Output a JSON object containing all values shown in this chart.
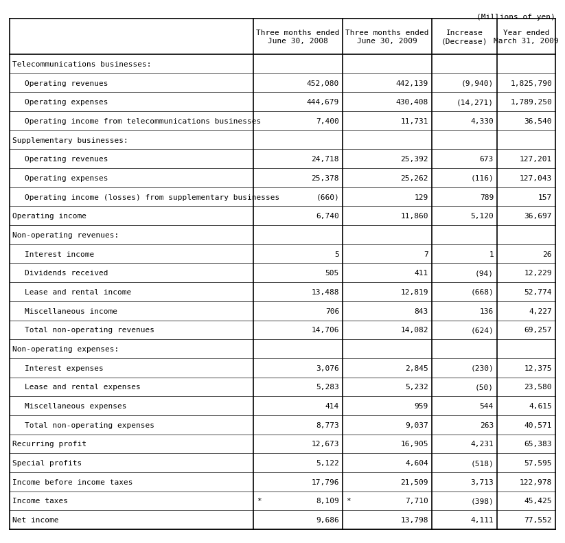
{
  "title_note": "(Millions of yen)",
  "col_headers": [
    "Three months ended\nJune 30, 2008",
    "Three months ended\nJune 30, 2009",
    "Increase\n(Decrease)",
    "Year ended\nMarch 31, 2009"
  ],
  "rows": [
    {
      "label": "Telecommunications businesses:",
      "indent": 0,
      "is_section": true,
      "values": [
        "",
        "",
        "",
        ""
      ],
      "star": [
        "",
        "",
        "",
        ""
      ]
    },
    {
      "label": "Operating revenues",
      "indent": 1,
      "is_section": false,
      "values": [
        "452,080",
        "442,139",
        "(9,940)",
        "1,825,790"
      ],
      "star": [
        "",
        "",
        "",
        ""
      ]
    },
    {
      "label": "Operating expenses",
      "indent": 1,
      "is_section": false,
      "values": [
        "444,679",
        "430,408",
        "(14,271)",
        "1,789,250"
      ],
      "star": [
        "",
        "",
        "",
        ""
      ]
    },
    {
      "label": "Operating income from telecommunications businesses",
      "indent": 1,
      "is_section": false,
      "values": [
        "7,400",
        "11,731",
        "4,330",
        "36,540"
      ],
      "star": [
        "",
        "",
        "",
        ""
      ]
    },
    {
      "label": "Supplementary businesses:",
      "indent": 0,
      "is_section": true,
      "values": [
        "",
        "",
        "",
        ""
      ],
      "star": [
        "",
        "",
        "",
        ""
      ]
    },
    {
      "label": "Operating revenues",
      "indent": 1,
      "is_section": false,
      "values": [
        "24,718",
        "25,392",
        "673",
        "127,201"
      ],
      "star": [
        "",
        "",
        "",
        ""
      ]
    },
    {
      "label": "Operating expenses",
      "indent": 1,
      "is_section": false,
      "values": [
        "25,378",
        "25,262",
        "(116)",
        "127,043"
      ],
      "star": [
        "",
        "",
        "",
        ""
      ]
    },
    {
      "label": "Operating income (losses) from supplementary businesses",
      "indent": 1,
      "is_section": false,
      "values": [
        "(660)",
        "129",
        "789",
        "157"
      ],
      "star": [
        "",
        "",
        "",
        ""
      ]
    },
    {
      "label": "Operating income",
      "indent": 0,
      "is_section": false,
      "values": [
        "6,740",
        "11,860",
        "5,120",
        "36,697"
      ],
      "star": [
        "",
        "",
        "",
        ""
      ]
    },
    {
      "label": "Non-operating revenues:",
      "indent": 0,
      "is_section": true,
      "values": [
        "",
        "",
        "",
        ""
      ],
      "star": [
        "",
        "",
        "",
        ""
      ]
    },
    {
      "label": "Interest income",
      "indent": 1,
      "is_section": false,
      "values": [
        "5",
        "7",
        "1",
        "26"
      ],
      "star": [
        "",
        "",
        "",
        ""
      ]
    },
    {
      "label": "Dividends received",
      "indent": 1,
      "is_section": false,
      "values": [
        "505",
        "411",
        "(94)",
        "12,229"
      ],
      "star": [
        "",
        "",
        "",
        ""
      ]
    },
    {
      "label": "Lease and rental income",
      "indent": 1,
      "is_section": false,
      "values": [
        "13,488",
        "12,819",
        "(668)",
        "52,774"
      ],
      "star": [
        "",
        "",
        "",
        ""
      ]
    },
    {
      "label": "Miscellaneous income",
      "indent": 1,
      "is_section": false,
      "values": [
        "706",
        "843",
        "136",
        "4,227"
      ],
      "star": [
        "",
        "",
        "",
        ""
      ]
    },
    {
      "label": "Total non-operating revenues",
      "indent": 1,
      "is_section": false,
      "values": [
        "14,706",
        "14,082",
        "(624)",
        "69,257"
      ],
      "star": [
        "",
        "",
        "",
        ""
      ]
    },
    {
      "label": "Non-operating expenses:",
      "indent": 0,
      "is_section": true,
      "values": [
        "",
        "",
        "",
        ""
      ],
      "star": [
        "",
        "",
        "",
        ""
      ]
    },
    {
      "label": "Interest expenses",
      "indent": 1,
      "is_section": false,
      "values": [
        "3,076",
        "2,845",
        "(230)",
        "12,375"
      ],
      "star": [
        "",
        "",
        "",
        ""
      ]
    },
    {
      "label": "Lease and rental expenses",
      "indent": 1,
      "is_section": false,
      "values": [
        "5,283",
        "5,232",
        "(50)",
        "23,580"
      ],
      "star": [
        "",
        "",
        "",
        ""
      ]
    },
    {
      "label": "Miscellaneous expenses",
      "indent": 1,
      "is_section": false,
      "values": [
        "414",
        "959",
        "544",
        "4,615"
      ],
      "star": [
        "",
        "",
        "",
        ""
      ]
    },
    {
      "label": "Total non-operating expenses",
      "indent": 1,
      "is_section": false,
      "values": [
        "8,773",
        "9,037",
        "263",
        "40,571"
      ],
      "star": [
        "",
        "",
        "",
        ""
      ]
    },
    {
      "label": "Recurring profit",
      "indent": 0,
      "is_section": false,
      "values": [
        "12,673",
        "16,905",
        "4,231",
        "65,383"
      ],
      "star": [
        "",
        "",
        "",
        ""
      ]
    },
    {
      "label": "Special profits",
      "indent": 0,
      "is_section": false,
      "values": [
        "5,122",
        "4,604",
        "(518)",
        "57,595"
      ],
      "star": [
        "",
        "",
        "",
        ""
      ]
    },
    {
      "label": "Income before income taxes",
      "indent": 0,
      "is_section": false,
      "values": [
        "17,796",
        "21,509",
        "3,713",
        "122,978"
      ],
      "star": [
        "",
        "",
        "",
        ""
      ]
    },
    {
      "label": "Income taxes",
      "indent": 0,
      "is_section": false,
      "values": [
        "8,109",
        "7,710",
        "(398)",
        "45,425"
      ],
      "star": [
        "*",
        "*",
        "",
        ""
      ]
    },
    {
      "label": "Net income",
      "indent": 0,
      "is_section": false,
      "values": [
        "9,686",
        "13,798",
        "4,111",
        "77,552"
      ],
      "star": [
        "",
        "",
        "",
        ""
      ]
    }
  ],
  "font_size": 8.0,
  "header_font_size": 8.0,
  "bg_color": "#ffffff",
  "border_color": "#000000",
  "text_color": "#000000",
  "font_family": "monospace"
}
